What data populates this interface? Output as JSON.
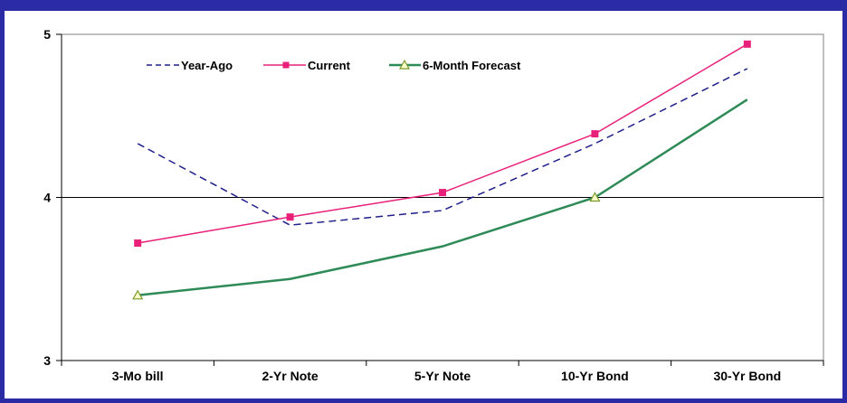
{
  "colors": {
    "frame": "#2b2ba6",
    "year_ago": "#1f1f8a",
    "current": "#e8207a",
    "forecast": "#2e8b57",
    "forecast_marker_fill": "#ffffcc",
    "forecast_marker_stroke": "#7a9a2a"
  },
  "chart_data": {
    "type": "line",
    "categories": [
      "3-Mo bill",
      "2-Yr Note",
      "5-Yr Note",
      "10-Yr Bond",
      "30-Yr Bond"
    ],
    "ylim": [
      3,
      5
    ],
    "yticks": [
      "3",
      "4",
      "5"
    ],
    "reference_line": 4,
    "grid": false,
    "legend_position": "top-left",
    "series": [
      {
        "name": "Year-Ago",
        "values": [
          4.33,
          3.83,
          3.92,
          4.33,
          4.79
        ],
        "style": "dashed",
        "marker": "none"
      },
      {
        "name": "Current",
        "values": [
          3.72,
          3.88,
          4.03,
          4.39,
          4.94
        ],
        "style": "solid",
        "marker": "square"
      },
      {
        "name": "6-Month Forecast",
        "values": [
          3.4,
          3.5,
          3.7,
          4.0,
          4.6
        ],
        "style": "solid",
        "marker": "triangle"
      }
    ]
  }
}
